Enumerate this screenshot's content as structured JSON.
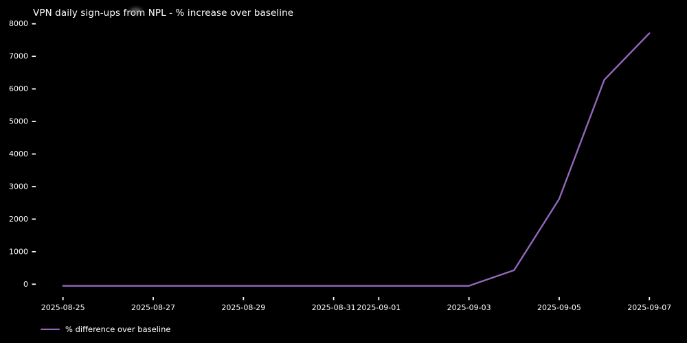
{
  "colors": {
    "background": "#000000",
    "text": "#ffffff",
    "line": "#9467bd"
  },
  "legend": {
    "label": "% difference over baseline"
  },
  "chart_data": {
    "type": "line",
    "title": "VPN daily sign-ups from NPL - % increase over baseline",
    "xlabel": "",
    "ylabel": "",
    "grid": false,
    "legend_position": "lower left",
    "line_color": "#9467bd",
    "x": [
      "2025-08-25",
      "2025-08-26",
      "2025-08-27",
      "2025-08-28",
      "2025-08-29",
      "2025-08-30",
      "2025-08-31",
      "2025-09-01",
      "2025-09-02",
      "2025-09-03",
      "2025-09-04",
      "2025-09-05",
      "2025-09-06",
      "2025-09-07"
    ],
    "series": [
      {
        "name": "% difference over baseline",
        "values": [
          -50,
          -50,
          -50,
          -50,
          -50,
          -50,
          -50,
          -50,
          -50,
          -50,
          430,
          2620,
          6280,
          7710
        ]
      }
    ],
    "y_ticks": [
      0,
      1000,
      2000,
      3000,
      4000,
      5000,
      6000,
      7000,
      8000
    ],
    "x_ticks": [
      {
        "label": "2025-08-25",
        "index": 0
      },
      {
        "label": "2025-08-27",
        "index": 2
      },
      {
        "label": "2025-08-29",
        "index": 4
      },
      {
        "label": "2025-08-31",
        "index": 6
      },
      {
        "label": "2025-09-01",
        "index": 7
      },
      {
        "label": "2025-09-03",
        "index": 9
      },
      {
        "label": "2025-09-05",
        "index": 11
      },
      {
        "label": "2025-09-07",
        "index": 13
      }
    ],
    "ylim": [
      -400,
      8600
    ]
  }
}
